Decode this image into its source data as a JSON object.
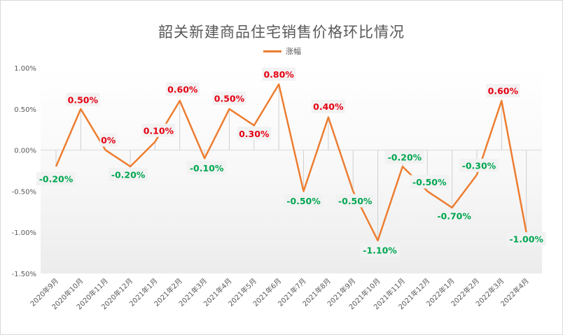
{
  "chart_data": {
    "type": "line",
    "title": "韶关新建商品住宅销售价格环比情况",
    "categories": [
      "2020年9月",
      "2020年10月",
      "2020年11月",
      "2020年12月",
      "2021年1月",
      "2021年2月",
      "2021年3月",
      "2021年4月",
      "2021年5月",
      "2021年6月",
      "2021年7月",
      "2021年8月",
      "2021年9月",
      "2021年10月",
      "2021年11月",
      "2021年12月",
      "2022年1月",
      "2022年2月",
      "2022年3月",
      "2022年4月"
    ],
    "series": [
      {
        "name": "涨幅",
        "values": [
          -0.2,
          0.5,
          0,
          -0.2,
          0.1,
          0.6,
          -0.1,
          0.5,
          0.3,
          0.8,
          -0.5,
          0.4,
          -0.5,
          -1.1,
          -0.2,
          -0.5,
          -0.7,
          -0.3,
          0.6,
          -1.0
        ]
      }
    ],
    "data_labels": [
      "-0.20%",
      "0.50%",
      "0%",
      "-0.20%",
      "0.10%",
      "0.60%",
      "-0.10%",
      "0.50%",
      "0.30%",
      "0.80%",
      "-0.50%",
      "0.40%",
      "-0.50%",
      "-1.10%",
      "-0.20%",
      "-0.50%",
      "-0.70%",
      "-0.30%",
      "0.60%",
      "-1.00%"
    ],
    "ylim": [
      -1.5,
      1.0
    ],
    "yticks": [
      "1.00%",
      "0.50%",
      "0.00%",
      "-0.50%",
      "-1.00%",
      "-1.50%"
    ],
    "ytick_values": [
      1.0,
      0.5,
      0,
      -0.5,
      -1.0,
      -1.5
    ],
    "legend_position": "top",
    "colors": {
      "line": "#ed7d31",
      "positive_label": "#e60012",
      "negative_label": "#00a651",
      "label_bg": "#f2f2f2"
    }
  }
}
